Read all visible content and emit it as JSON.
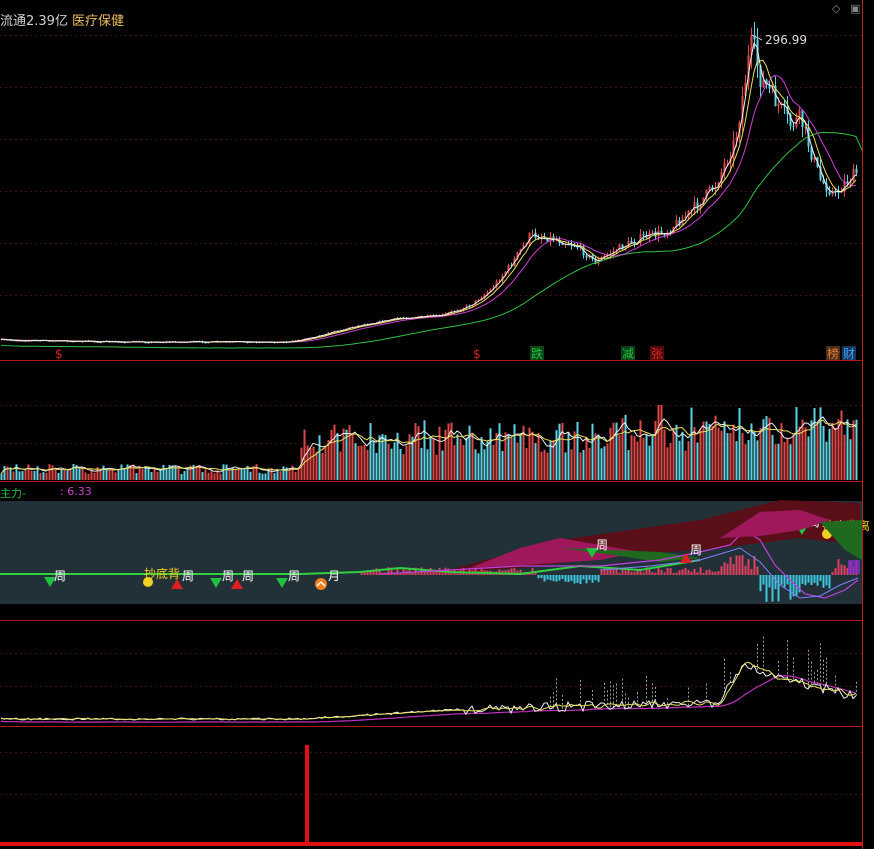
{
  "header": {
    "text_left": "流通2.39亿",
    "sector": "医疗保健"
  },
  "window_controls": {
    "restore_glyph": "◇",
    "close_glyph": "▣"
  },
  "colors": {
    "background": "#000000",
    "up_candle": "#e04848",
    "down_candle": "#5fd3e6",
    "ma_white": "#f0f0f0",
    "ma_yellow": "#e8e060",
    "ma_magenta": "#d040d0",
    "ma_green": "#30c040",
    "panel_bg": "#223038",
    "bottom_bar": "#e01010",
    "signal_red": "#e02020",
    "signal_green": "#20c040",
    "signal_yellow": "#f0d020"
  },
  "indicator_panel": {
    "label_left": "主力-",
    "label_value": ": 6.33"
  },
  "chart_data": [
    {
      "type": "line",
      "name": "price-panel",
      "annotation_max": "296.99",
      "markers": [
        {
          "label": "$",
          "x": 60,
          "color": "#e02020"
        },
        {
          "label": "$",
          "x": 478,
          "color": "#e02020"
        },
        {
          "label": "跌",
          "x": 536,
          "color": "#20c040"
        },
        {
          "label": "减",
          "x": 627,
          "color": "#20c040"
        },
        {
          "label": "张",
          "x": 656,
          "color": "#e02020"
        },
        {
          "label": "榜",
          "x": 832,
          "color": "#e08040"
        },
        {
          "label": "财",
          "x": 848,
          "color": "#40a0ff"
        }
      ]
    },
    {
      "type": "bar",
      "name": "volume-panel"
    },
    {
      "type": "area",
      "name": "signal-panel",
      "labels": [
        {
          "text": "周",
          "x": 58
        },
        {
          "text": "抄底背",
          "x": 148,
          "color": "#f0d020"
        },
        {
          "text": "周",
          "x": 186
        },
        {
          "text": "周",
          "x": 226
        },
        {
          "text": "周",
          "x": 246
        },
        {
          "text": "周",
          "x": 292
        },
        {
          "text": "月",
          "x": 332
        },
        {
          "text": "周",
          "x": 600
        },
        {
          "text": "周",
          "x": 694
        },
        {
          "text": "周",
          "x": 812
        },
        {
          "text": "抄底",
          "x": 826,
          "color": "#f0d020"
        },
        {
          "text": "背离",
          "x": 850,
          "color": "#f0d020"
        }
      ]
    },
    {
      "type": "line",
      "name": "oscillator-panel"
    },
    {
      "type": "bar",
      "name": "event-panel"
    }
  ]
}
